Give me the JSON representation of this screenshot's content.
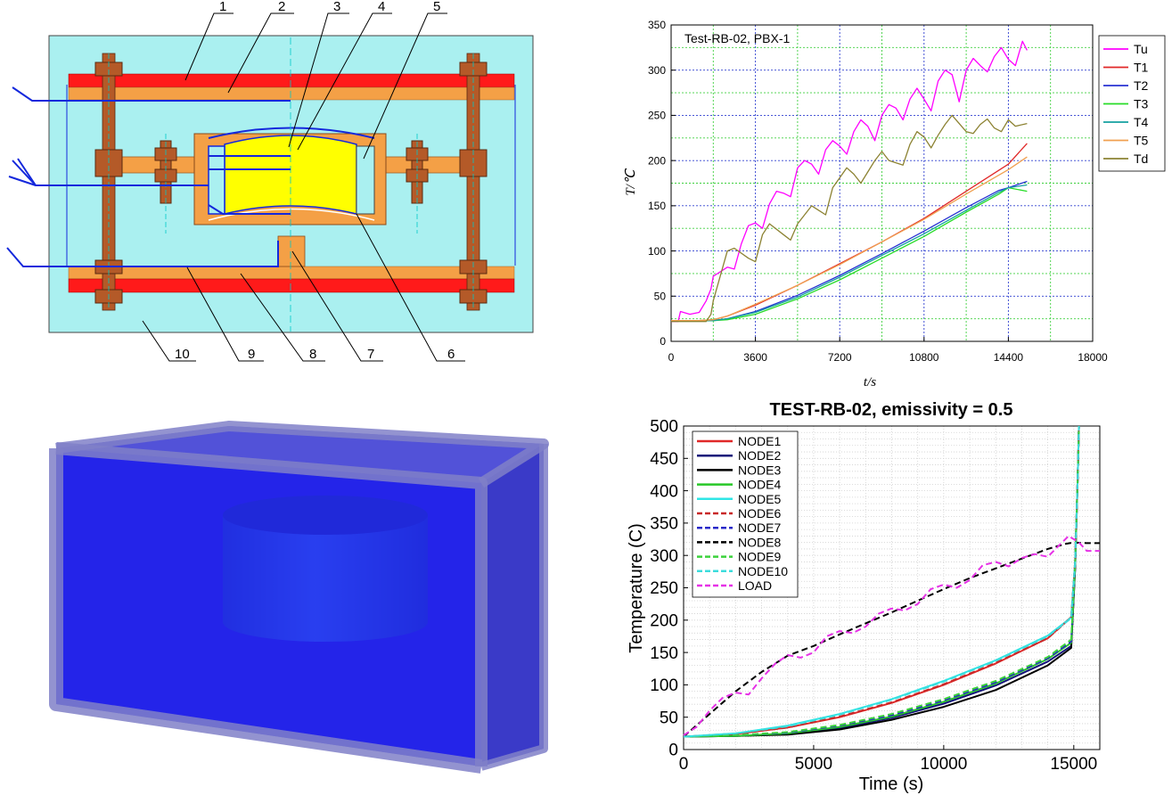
{
  "diagram": {
    "callouts": [
      "1",
      "2",
      "3",
      "4",
      "5",
      "6",
      "7",
      "8",
      "9",
      "10"
    ]
  },
  "colors": {
    "background_panel": "#aaf0f0",
    "heater_red": "#ff1a1a",
    "plate_orange": "#f4a046",
    "bolt_brown": "#b45a28",
    "sample_yellow": "#ffff00",
    "wire_blue": "#1428dc",
    "box_blue": "#2828e6",
    "cylinder_blue": "#2a6fd8"
  },
  "chart_data": [
    {
      "type": "line",
      "annotation": "Test-RB-02, PBX-1",
      "xlabel": "t/s",
      "ylabel": "T/℃",
      "xlim": [
        0,
        18000
      ],
      "ylim": [
        0,
        350
      ],
      "xticks": [
        0,
        3600,
        7200,
        10800,
        14400,
        18000
      ],
      "yticks": [
        0,
        50,
        100,
        150,
        200,
        250,
        300,
        350
      ],
      "grid": true,
      "legend_position": "right",
      "series": [
        {
          "name": "Tu",
          "color": "#ff00ff",
          "x": [
            0,
            300,
            400,
            800,
            1200,
            1500,
            1700,
            1800,
            2400,
            2700,
            3000,
            3300,
            3600,
            3900,
            4200,
            4500,
            4800,
            5100,
            5400,
            5700,
            6000,
            6300,
            6600,
            6900,
            7200,
            7500,
            7800,
            8100,
            8400,
            8700,
            9000,
            9300,
            9600,
            9900,
            10200,
            10500,
            10800,
            11100,
            11400,
            11700,
            12000,
            12300,
            12600,
            12900,
            13200,
            13500,
            13800,
            14100,
            14400,
            14700,
            15000,
            15200
          ],
          "y": [
            22,
            22,
            33,
            30,
            32,
            45,
            58,
            72,
            82,
            80,
            108,
            128,
            131,
            125,
            152,
            166,
            164,
            160,
            192,
            200,
            196,
            185,
            212,
            222,
            216,
            207,
            232,
            245,
            238,
            222,
            250,
            262,
            258,
            245,
            268,
            280,
            268,
            255,
            288,
            300,
            295,
            265,
            300,
            313,
            305,
            298,
            315,
            325,
            312,
            305,
            332,
            322
          ]
        },
        {
          "name": "T1",
          "color": "#e02828",
          "x": [
            0,
            1200,
            1800,
            2400,
            3600,
            5400,
            7200,
            9000,
            10800,
            12600,
            14400,
            15200
          ],
          "y": [
            23,
            23,
            24,
            28,
            40,
            62,
            86,
            110,
            136,
            166,
            196,
            219
          ]
        },
        {
          "name": "T2",
          "color": "#2832d2",
          "x": [
            0,
            1200,
            1800,
            2400,
            3600,
            5400,
            7200,
            9000,
            10800,
            12600,
            14000,
            14400,
            15200
          ],
          "y": [
            23,
            23,
            23,
            25,
            33,
            51,
            73,
            97,
            122,
            148,
            167,
            170,
            177
          ]
        },
        {
          "name": "T3",
          "color": "#28dc28",
          "x": [
            0,
            1200,
            1800,
            2400,
            3600,
            5400,
            7200,
            9000,
            10800,
            12600,
            14000,
            14400,
            15200
          ],
          "y": [
            23,
            23,
            23,
            24,
            30,
            47,
            68,
            92,
            116,
            143,
            163,
            170,
            166
          ]
        },
        {
          "name": "T4",
          "color": "#14a0a0",
          "x": [
            0,
            1200,
            1800,
            2400,
            3600,
            5400,
            7200,
            9000,
            10800,
            12600,
            14000,
            14400,
            15200
          ],
          "y": [
            23,
            23,
            23,
            25,
            32,
            49,
            71,
            95,
            119,
            145,
            165,
            170,
            173
          ]
        },
        {
          "name": "T5",
          "color": "#f0a050",
          "x": [
            0,
            1200,
            1800,
            2400,
            3600,
            5400,
            7200,
            9000,
            10800,
            12600,
            14400,
            15200
          ],
          "y": [
            23,
            23,
            24,
            28,
            41,
            62,
            85,
            110,
            135,
            163,
            190,
            204
          ]
        },
        {
          "name": "Td",
          "color": "#8c8232",
          "x": [
            0,
            1500,
            1700,
            1800,
            2400,
            2700,
            3300,
            3600,
            3900,
            4200,
            4800,
            5100,
            5400,
            6000,
            6300,
            6600,
            6900,
            7500,
            7800,
            8100,
            8700,
            9000,
            9300,
            9900,
            10200,
            10500,
            10800,
            11100,
            11400,
            11700,
            12000,
            12600,
            12900,
            13200,
            13500,
            13800,
            14100,
            14400,
            14700,
            15200
          ],
          "y": [
            22,
            22,
            30,
            45,
            100,
            103,
            92,
            88,
            118,
            130,
            118,
            112,
            130,
            150,
            145,
            140,
            170,
            192,
            185,
            175,
            200,
            210,
            200,
            195,
            218,
            232,
            226,
            214,
            228,
            240,
            250,
            232,
            230,
            240,
            246,
            236,
            232,
            245,
            238,
            241
          ]
        }
      ]
    },
    {
      "type": "line",
      "title": "TEST-RB-02, emissivity = 0.5",
      "xlabel": "Time (s)",
      "ylabel": "Temperature (C)",
      "xlim": [
        0,
        16000
      ],
      "ylim": [
        0,
        500
      ],
      "xticks": [
        0,
        5000,
        10000,
        15000
      ],
      "yticks": [
        0,
        50,
        100,
        150,
        200,
        250,
        300,
        350,
        400,
        450,
        500
      ],
      "grid": true,
      "legend_position": "top-left",
      "series": [
        {
          "name": "NODE1",
          "color": "#e02828",
          "dash": false,
          "x": [
            0,
            2000,
            4000,
            6000,
            8000,
            10000,
            12000,
            14000,
            14900,
            15050,
            15150,
            15200
          ],
          "y": [
            20,
            24,
            34,
            50,
            72,
            100,
            133,
            172,
            205,
            290,
            420,
            500
          ]
        },
        {
          "name": "NODE2",
          "color": "#14147a",
          "dash": false,
          "x": [
            0,
            2000,
            4000,
            6000,
            8000,
            10000,
            12000,
            14000,
            14900,
            15050,
            15150,
            15200
          ],
          "y": [
            20,
            21,
            24,
            33,
            49,
            71,
            99,
            136,
            160,
            280,
            420,
            500
          ]
        },
        {
          "name": "NODE3",
          "color": "#000000",
          "dash": false,
          "x": [
            0,
            2000,
            4000,
            6000,
            8000,
            10000,
            12000,
            14000,
            14900,
            15050,
            15150,
            15200
          ],
          "y": [
            20,
            21,
            23,
            31,
            46,
            66,
            92,
            130,
            157,
            280,
            420,
            500
          ]
        },
        {
          "name": "NODE4",
          "color": "#28c828",
          "dash": false,
          "x": [
            0,
            2000,
            4000,
            6000,
            8000,
            10000,
            12000,
            14000,
            14900,
            15050,
            15150,
            15200
          ],
          "y": [
            20,
            21,
            25,
            35,
            51,
            74,
            102,
            140,
            165,
            285,
            420,
            500
          ]
        },
        {
          "name": "NODE5",
          "color": "#2ee6e6",
          "dash": false,
          "x": [
            0,
            2000,
            4000,
            6000,
            8000,
            10000,
            12000,
            14000,
            14900,
            15050,
            15150,
            15200
          ],
          "y": [
            20,
            25,
            37,
            55,
            78,
            106,
            138,
            176,
            204,
            290,
            420,
            500
          ]
        },
        {
          "name": "NODE6",
          "color": "#c82828",
          "dash": true,
          "x": [
            0,
            2000,
            4000,
            6000,
            8000,
            10000,
            12000,
            14000,
            14900,
            15050,
            15150,
            15200
          ],
          "y": [
            20,
            24,
            34,
            51,
            73,
            101,
            134,
            172,
            204,
            290,
            420,
            500
          ]
        },
        {
          "name": "NODE7",
          "color": "#2828c8",
          "dash": true,
          "x": [
            0,
            2000,
            4000,
            6000,
            8000,
            10000,
            12000,
            14000,
            14900,
            15050,
            15150,
            15200
          ],
          "y": [
            20,
            22,
            26,
            37,
            53,
            76,
            104,
            141,
            167,
            285,
            420,
            500
          ]
        },
        {
          "name": "NODE8",
          "color": "#000000",
          "dash": true,
          "x": [
            0,
            1000,
            2000,
            3000,
            4000,
            5000,
            6000,
            7000,
            8000,
            9000,
            10000,
            11000,
            12000,
            13000,
            14000,
            14700,
            15000,
            15500,
            16000
          ],
          "y": [
            20,
            55,
            90,
            120,
            145,
            160,
            178,
            195,
            212,
            230,
            248,
            265,
            280,
            295,
            310,
            318,
            320,
            319,
            319
          ]
        },
        {
          "name": "NODE9",
          "color": "#3cd23c",
          "dash": true,
          "x": [
            0,
            2000,
            4000,
            6000,
            8000,
            10000,
            12000,
            14000,
            14900,
            15050,
            15150,
            15200
          ],
          "y": [
            20,
            22,
            27,
            38,
            55,
            78,
            106,
            143,
            170,
            285,
            420,
            500
          ]
        },
        {
          "name": "NODE10",
          "color": "#3cdcdc",
          "dash": true,
          "x": [
            0,
            2000,
            4000,
            6000,
            8000,
            10000,
            12000,
            14000,
            14900,
            15050,
            15150,
            15200
          ],
          "y": [
            20,
            25,
            36,
            54,
            77,
            105,
            137,
            175,
            203,
            290,
            420,
            500
          ]
        },
        {
          "name": "LOAD",
          "color": "#e632e6",
          "dash": true,
          "x": [
            0,
            500,
            1000,
            1500,
            2000,
            2500,
            3000,
            3500,
            4000,
            4500,
            5000,
            5500,
            6000,
            6500,
            7000,
            7500,
            8000,
            8500,
            9000,
            9500,
            10000,
            10500,
            11000,
            11500,
            12000,
            12500,
            13000,
            13500,
            14000,
            14500,
            14800,
            15000,
            15200,
            15500,
            16000
          ],
          "y": [
            22,
            35,
            60,
            80,
            88,
            85,
            110,
            132,
            146,
            142,
            150,
            175,
            183,
            180,
            190,
            210,
            218,
            215,
            225,
            248,
            255,
            250,
            262,
            285,
            290,
            283,
            296,
            302,
            298,
            318,
            330,
            325,
            320,
            307,
            307
          ]
        }
      ]
    }
  ]
}
